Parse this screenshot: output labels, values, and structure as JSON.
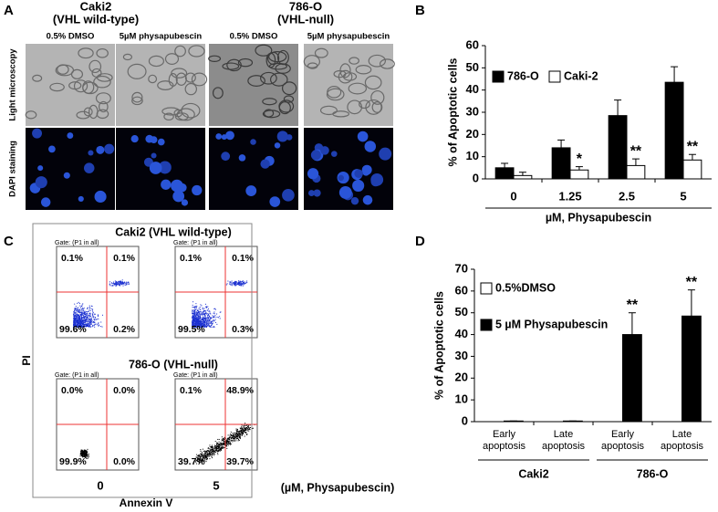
{
  "panel_labels": [
    "A",
    "B",
    "C",
    "D"
  ],
  "panel_a": {
    "groups": [
      {
        "title": "Caki2",
        "subtitle": "(VHL wild-type)"
      },
      {
        "title": "786-O",
        "subtitle": "(VHL-null)"
      }
    ],
    "columns": [
      "0.5% DMSO",
      "5µM physapubescin",
      "0.5% DMSO",
      "5µM physapubescin"
    ],
    "rows": [
      "Light microscopy",
      "DAPI staining"
    ]
  },
  "panel_c": {
    "titles": [
      "Caki2 (VHL wild-type)",
      "786-O (VHL-null)"
    ],
    "gate": "Gate: (P1 in all)",
    "plots": [
      {
        "upper_left": "0.1%",
        "upper_right": "0.1%",
        "lower_left": "99.6%",
        "lower_right": "0.2%"
      },
      {
        "upper_left": "0.1%",
        "upper_right": "0.1%",
        "lower_left": "99.5%",
        "lower_right": "0.3%"
      },
      {
        "upper_left": "0.0%",
        "upper_right": "0.0%",
        "lower_left": "99.9%",
        "lower_right": "0.0%"
      },
      {
        "upper_left": "0.1%",
        "upper_right": "48.9%",
        "lower_left": "39.7%",
        "lower_right": "39.7%"
      }
    ],
    "y_label": "PI",
    "x_label": "Annexin V",
    "doses": [
      "0",
      "5"
    ],
    "dose_unit": "(µM, Physapubescin)"
  },
  "chart_data": [
    {
      "type": "bar",
      "y_label": "% of Apoptotic cells",
      "x_label": "µM, Physapubescin",
      "categories": [
        "0",
        "1.25",
        "2.5",
        "5"
      ],
      "series": [
        {
          "name": "786-O",
          "color": "#000000",
          "values": [
            5,
            14,
            28.5,
            43.5
          ],
          "errors": [
            2,
            3.5,
            7,
            7
          ],
          "marks": [
            null,
            null,
            null,
            null
          ]
        },
        {
          "name": "Caki-2",
          "color": "#ffffff",
          "values": [
            1.5,
            4,
            6,
            8.5
          ],
          "errors": [
            1.5,
            1.5,
            3,
            2.5
          ],
          "marks": [
            null,
            "*",
            "**",
            "**"
          ]
        }
      ],
      "ylim": [
        0,
        60
      ],
      "yticks": [
        0,
        10,
        20,
        30,
        40,
        50,
        60
      ],
      "legend": "top-left"
    },
    {
      "type": "bar",
      "y_label": "% of Apoptotic cells",
      "categories": [
        "Early apoptosis",
        "Late apoptosis",
        "Early apoptosis",
        "Late apoptosis"
      ],
      "group_labels": [
        "Caki2",
        "786-O"
      ],
      "series": [
        {
          "name": "0.5%DMSO",
          "color": "#ffffff",
          "values": [
            0,
            0,
            0,
            0
          ],
          "errors": [
            0,
            0,
            0,
            0
          ],
          "marks": [
            null,
            null,
            null,
            null
          ]
        },
        {
          "name": "5 µM Physapubescin",
          "color": "#000000",
          "values": [
            0.3,
            0.3,
            40,
            48.5
          ],
          "errors": [
            0,
            0,
            10,
            12
          ],
          "marks": [
            null,
            null,
            "**",
            "**"
          ]
        }
      ],
      "ylim": [
        0,
        70
      ],
      "yticks": [
        0,
        10,
        20,
        30,
        40,
        50,
        60,
        70
      ],
      "legend": "top-left"
    }
  ]
}
